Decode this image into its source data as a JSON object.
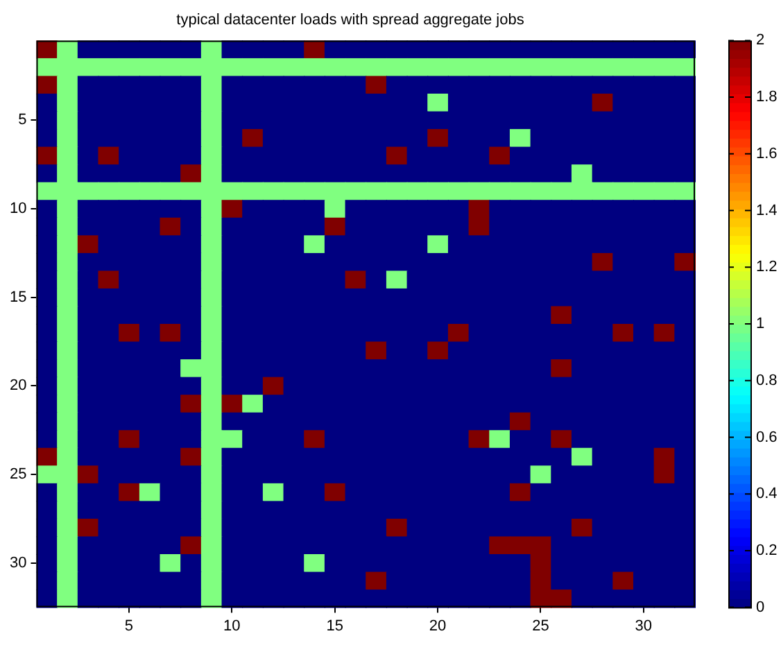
{
  "chart_data": {
    "type": "heatmap",
    "title": "typical datacenter loads with spread aggregate jobs",
    "categories": [
      null,
      null,
      null,
      null,
      "5",
      null,
      null,
      null,
      null,
      "10",
      null,
      null,
      null,
      null,
      "15",
      null,
      null,
      null,
      null,
      "20",
      null,
      null,
      null,
      null,
      "25",
      null,
      null,
      null,
      null,
      "30",
      null,
      null
    ],
    "y_categories": [
      null,
      null,
      null,
      null,
      "5",
      null,
      null,
      null,
      null,
      "10",
      null,
      null,
      null,
      null,
      "15",
      null,
      null,
      null,
      null,
      "20",
      null,
      null,
      null,
      null,
      "25",
      null,
      null,
      null,
      null,
      "30",
      null,
      null
    ],
    "cells": [
      [
        2,
        1,
        0,
        0,
        0,
        0,
        0,
        0,
        1,
        0,
        0,
        0,
        0,
        2,
        0,
        0,
        0,
        0,
        0,
        0,
        0,
        0,
        0,
        0,
        0,
        0,
        0,
        0,
        0,
        0,
        0,
        0
      ],
      [
        1,
        1,
        1,
        1,
        1,
        1,
        1,
        1,
        1,
        1,
        1,
        1,
        1,
        1,
        1,
        1,
        1,
        1,
        1,
        1,
        1,
        1,
        1,
        1,
        1,
        1,
        1,
        1,
        1,
        1,
        1,
        1
      ],
      [
        2,
        1,
        0,
        0,
        0,
        0,
        0,
        0,
        1,
        0,
        0,
        0,
        0,
        0,
        0,
        0,
        2,
        0,
        0,
        0,
        0,
        0,
        0,
        0,
        0,
        0,
        0,
        0,
        0,
        0,
        0,
        0
      ],
      [
        0,
        1,
        0,
        0,
        0,
        0,
        0,
        0,
        1,
        0,
        0,
        0,
        0,
        0,
        0,
        0,
        0,
        0,
        0,
        1,
        0,
        0,
        0,
        0,
        0,
        0,
        0,
        2,
        0,
        0,
        0,
        0
      ],
      [
        0,
        1,
        0,
        0,
        0,
        0,
        0,
        0,
        1,
        0,
        0,
        0,
        0,
        0,
        0,
        0,
        0,
        0,
        0,
        0,
        0,
        0,
        0,
        0,
        0,
        0,
        0,
        0,
        0,
        0,
        0,
        0
      ],
      [
        0,
        1,
        0,
        0,
        0,
        0,
        0,
        0,
        1,
        0,
        2,
        0,
        0,
        0,
        0,
        0,
        0,
        0,
        0,
        2,
        0,
        0,
        0,
        1,
        0,
        0,
        0,
        0,
        0,
        0,
        0,
        0
      ],
      [
        2,
        1,
        0,
        2,
        0,
        0,
        0,
        0,
        1,
        0,
        0,
        0,
        0,
        0,
        0,
        0,
        0,
        2,
        0,
        0,
        0,
        0,
        2,
        0,
        0,
        0,
        0,
        0,
        0,
        0,
        0,
        0
      ],
      [
        0,
        1,
        0,
        0,
        0,
        0,
        0,
        2,
        1,
        0,
        0,
        0,
        0,
        0,
        0,
        0,
        0,
        0,
        0,
        0,
        0,
        0,
        0,
        0,
        0,
        0,
        1,
        0,
        0,
        0,
        0,
        0
      ],
      [
        1,
        1,
        1,
        1,
        1,
        1,
        1,
        1,
        1,
        1,
        1,
        1,
        1,
        1,
        1,
        1,
        1,
        1,
        1,
        1,
        1,
        1,
        1,
        1,
        1,
        1,
        1,
        1,
        1,
        1,
        1,
        1
      ],
      [
        0,
        1,
        0,
        0,
        0,
        0,
        0,
        0,
        1,
        2,
        0,
        0,
        0,
        0,
        1,
        0,
        0,
        0,
        0,
        0,
        0,
        2,
        0,
        0,
        0,
        0,
        0,
        0,
        0,
        0,
        0,
        0
      ],
      [
        0,
        1,
        0,
        0,
        0,
        0,
        2,
        0,
        1,
        0,
        0,
        0,
        0,
        0,
        2,
        0,
        0,
        0,
        0,
        0,
        0,
        2,
        0,
        0,
        0,
        0,
        0,
        0,
        0,
        0,
        0,
        0
      ],
      [
        0,
        1,
        2,
        0,
        0,
        0,
        0,
        0,
        1,
        0,
        0,
        0,
        0,
        1,
        0,
        0,
        0,
        0,
        0,
        1,
        0,
        0,
        0,
        0,
        0,
        0,
        0,
        0,
        0,
        0,
        0,
        0
      ],
      [
        0,
        1,
        0,
        0,
        0,
        0,
        0,
        0,
        1,
        0,
        0,
        0,
        0,
        0,
        0,
        0,
        0,
        0,
        0,
        0,
        0,
        0,
        0,
        0,
        0,
        0,
        0,
        2,
        0,
        0,
        0,
        2
      ],
      [
        0,
        1,
        0,
        2,
        0,
        0,
        0,
        0,
        1,
        0,
        0,
        0,
        0,
        0,
        0,
        2,
        0,
        1,
        0,
        0,
        0,
        0,
        0,
        0,
        0,
        0,
        0,
        0,
        0,
        0,
        0,
        0
      ],
      [
        0,
        1,
        0,
        0,
        0,
        0,
        0,
        0,
        1,
        0,
        0,
        0,
        0,
        0,
        0,
        0,
        0,
        0,
        0,
        0,
        0,
        0,
        0,
        0,
        0,
        0,
        0,
        0,
        0,
        0,
        0,
        0
      ],
      [
        0,
        1,
        0,
        0,
        0,
        0,
        0,
        0,
        1,
        0,
        0,
        0,
        0,
        0,
        0,
        0,
        0,
        0,
        0,
        0,
        0,
        0,
        0,
        0,
        0,
        2,
        0,
        0,
        0,
        0,
        0,
        0
      ],
      [
        0,
        1,
        0,
        0,
        2,
        0,
        2,
        0,
        1,
        0,
        0,
        0,
        0,
        0,
        0,
        0,
        0,
        0,
        0,
        0,
        2,
        0,
        0,
        0,
        0,
        0,
        0,
        0,
        2,
        0,
        2,
        0
      ],
      [
        0,
        1,
        0,
        0,
        0,
        0,
        0,
        0,
        1,
        0,
        0,
        0,
        0,
        0,
        0,
        0,
        2,
        0,
        0,
        2,
        0,
        0,
        0,
        0,
        0,
        0,
        0,
        0,
        0,
        0,
        0,
        0
      ],
      [
        0,
        1,
        0,
        0,
        0,
        0,
        0,
        1,
        1,
        0,
        0,
        0,
        0,
        0,
        0,
        0,
        0,
        0,
        0,
        0,
        0,
        0,
        0,
        0,
        0,
        2,
        0,
        0,
        0,
        0,
        0,
        0
      ],
      [
        0,
        1,
        0,
        0,
        0,
        0,
        0,
        0,
        1,
        0,
        0,
        2,
        0,
        0,
        0,
        0,
        0,
        0,
        0,
        0,
        0,
        0,
        0,
        0,
        0,
        0,
        0,
        0,
        0,
        0,
        0,
        0
      ],
      [
        0,
        1,
        0,
        0,
        0,
        0,
        0,
        2,
        1,
        2,
        1,
        0,
        0,
        0,
        0,
        0,
        0,
        0,
        0,
        0,
        0,
        0,
        0,
        0,
        0,
        0,
        0,
        0,
        0,
        0,
        0,
        0
      ],
      [
        0,
        1,
        0,
        0,
        0,
        0,
        0,
        0,
        1,
        0,
        0,
        0,
        0,
        0,
        0,
        0,
        0,
        0,
        0,
        0,
        0,
        0,
        0,
        2,
        0,
        0,
        0,
        0,
        0,
        0,
        0,
        0
      ],
      [
        0,
        1,
        0,
        0,
        2,
        0,
        0,
        0,
        1,
        1,
        0,
        0,
        0,
        2,
        0,
        0,
        0,
        0,
        0,
        0,
        0,
        2,
        1,
        0,
        0,
        2,
        0,
        0,
        0,
        0,
        0,
        0
      ],
      [
        2,
        1,
        0,
        0,
        0,
        0,
        0,
        2,
        1,
        0,
        0,
        0,
        0,
        0,
        0,
        0,
        0,
        0,
        0,
        0,
        0,
        0,
        0,
        0,
        0,
        0,
        1,
        0,
        0,
        0,
        2,
        0
      ],
      [
        1,
        1,
        2,
        0,
        0,
        0,
        0,
        0,
        1,
        0,
        0,
        0,
        0,
        0,
        0,
        0,
        0,
        0,
        0,
        0,
        0,
        0,
        0,
        0,
        1,
        0,
        0,
        0,
        0,
        0,
        2,
        0
      ],
      [
        0,
        1,
        0,
        0,
        2,
        1,
        0,
        0,
        1,
        0,
        0,
        1,
        0,
        0,
        2,
        0,
        0,
        0,
        0,
        0,
        0,
        0,
        0,
        2,
        0,
        0,
        0,
        0,
        0,
        0,
        0,
        0
      ],
      [
        0,
        1,
        0,
        0,
        0,
        0,
        0,
        0,
        1,
        0,
        0,
        0,
        0,
        0,
        0,
        0,
        0,
        0,
        0,
        0,
        0,
        0,
        0,
        0,
        0,
        0,
        0,
        0,
        0,
        0,
        0,
        0
      ],
      [
        0,
        1,
        2,
        0,
        0,
        0,
        0,
        0,
        1,
        0,
        0,
        0,
        0,
        0,
        0,
        0,
        0,
        2,
        0,
        0,
        0,
        0,
        0,
        0,
        0,
        0,
        2,
        0,
        0,
        0,
        0,
        0
      ],
      [
        0,
        1,
        0,
        0,
        0,
        0,
        0,
        2,
        1,
        0,
        0,
        0,
        0,
        0,
        0,
        0,
        0,
        0,
        0,
        0,
        0,
        0,
        2,
        2,
        2,
        0,
        0,
        0,
        0,
        0,
        0,
        0
      ],
      [
        0,
        1,
        0,
        0,
        0,
        0,
        1,
        0,
        1,
        0,
        0,
        0,
        0,
        1,
        0,
        0,
        0,
        0,
        0,
        0,
        0,
        0,
        0,
        0,
        2,
        0,
        0,
        0,
        0,
        0,
        0,
        0
      ],
      [
        0,
        1,
        0,
        0,
        0,
        0,
        0,
        0,
        1,
        0,
        0,
        0,
        0,
        0,
        0,
        0,
        2,
        0,
        0,
        0,
        0,
        0,
        0,
        0,
        2,
        0,
        0,
        0,
        2,
        0,
        0,
        0
      ],
      [
        0,
        1,
        0,
        0,
        0,
        0,
        0,
        0,
        1,
        0,
        0,
        0,
        0,
        0,
        0,
        0,
        0,
        0,
        0,
        0,
        0,
        0,
        0,
        0,
        2,
        2,
        0,
        0,
        0,
        0,
        0,
        0
      ]
    ],
    "clim": [
      0,
      2
    ],
    "cticks": [
      0,
      0.2,
      0.4,
      0.6,
      0.8,
      1,
      1.2,
      1.4,
      1.6,
      1.8,
      2
    ]
  }
}
